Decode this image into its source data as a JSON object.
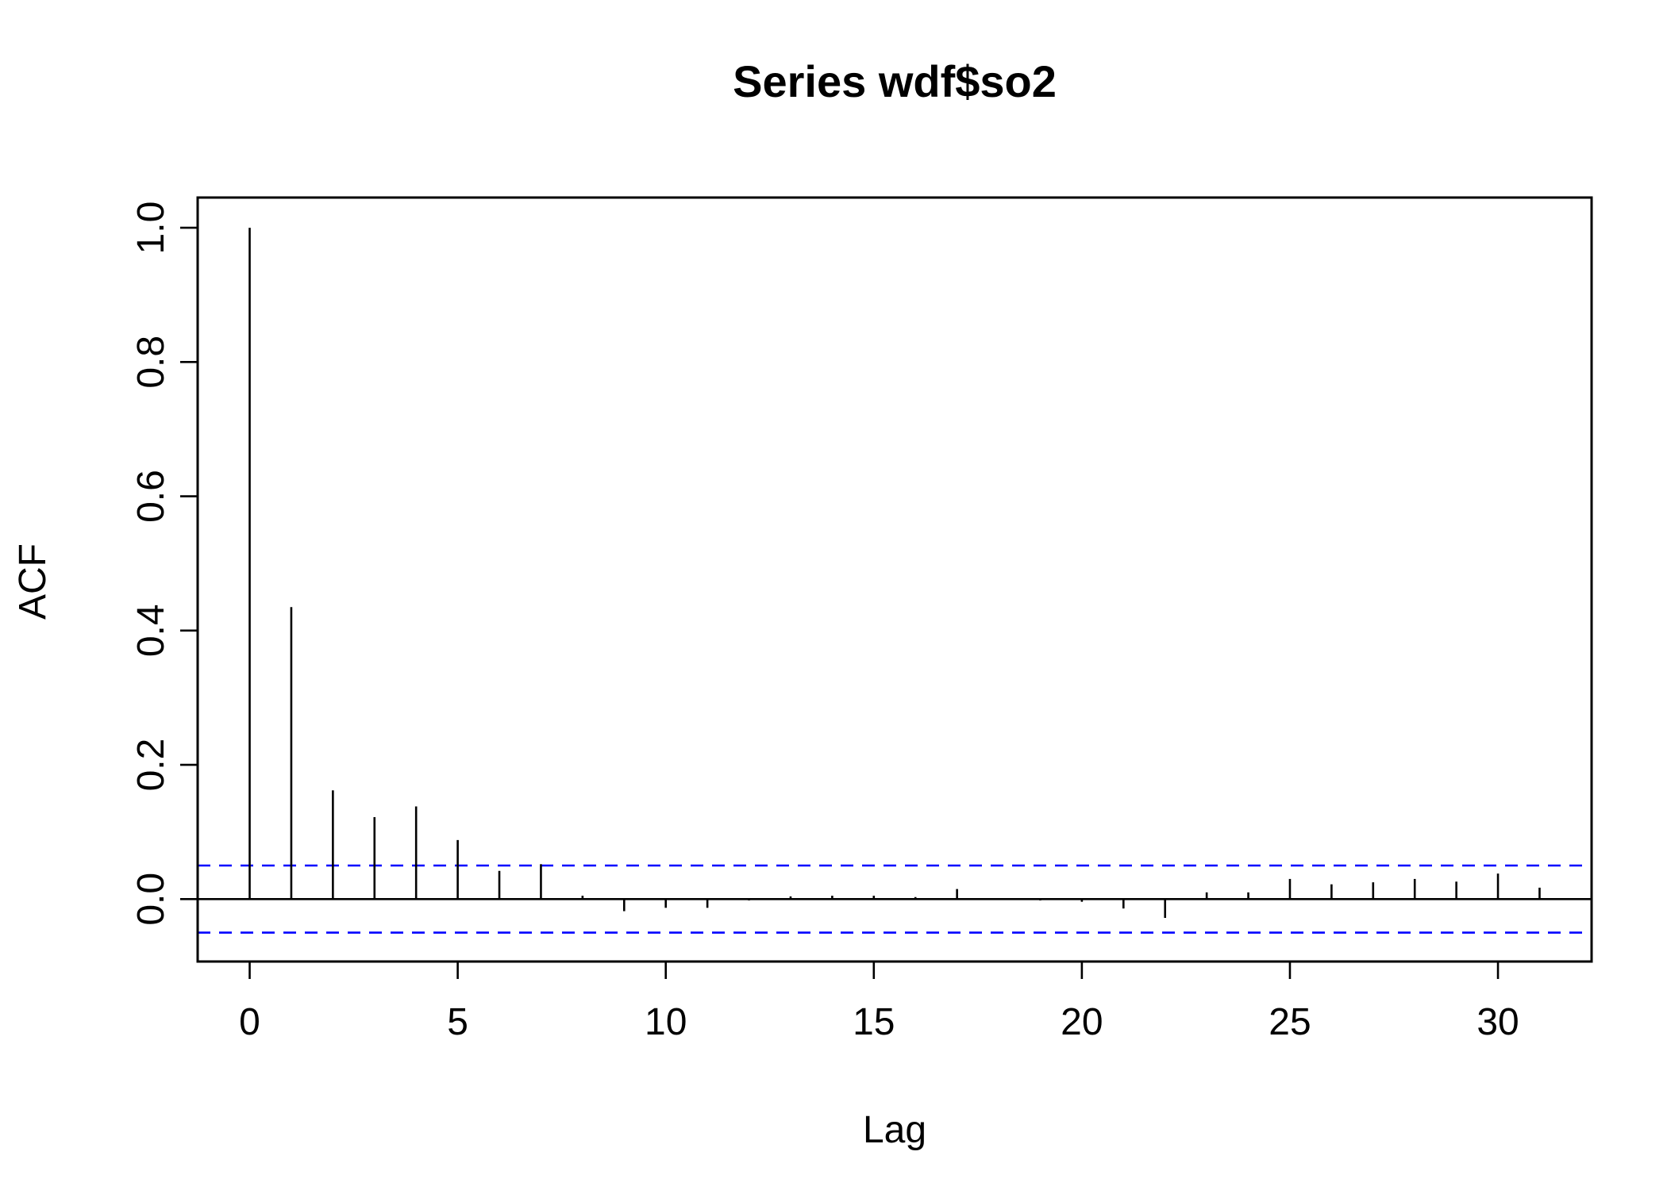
{
  "chart_data": {
    "type": "bar",
    "subtype": "acf-spikes",
    "title": "Series  wdf$so2",
    "xlabel": "Lag",
    "ylabel": "ACF",
    "x": [
      0,
      1,
      2,
      3,
      4,
      5,
      6,
      7,
      8,
      9,
      10,
      11,
      12,
      13,
      14,
      15,
      16,
      17,
      18,
      19,
      20,
      21,
      22,
      23,
      24,
      25,
      26,
      27,
      28,
      29,
      30,
      31
    ],
    "values": [
      1.0,
      0.435,
      0.162,
      0.122,
      0.138,
      0.088,
      0.042,
      0.052,
      0.005,
      -0.018,
      -0.013,
      -0.013,
      -0.002,
      0.004,
      0.005,
      0.005,
      0.003,
      0.015,
      -0.001,
      -0.002,
      -0.004,
      -0.014,
      -0.028,
      0.01,
      0.01,
      0.03,
      0.022,
      0.025,
      0.03,
      0.026,
      0.038,
      0.017
    ],
    "confidence_bounds": [
      0.05,
      -0.05
    ],
    "xlim": [
      -1.25,
      32.25
    ],
    "ylim": [
      -0.093,
      1.045
    ],
    "x_ticks": [
      0,
      5,
      10,
      15,
      20,
      25,
      30
    ],
    "x_tick_labels": [
      "0",
      "5",
      "10",
      "15",
      "20",
      "25",
      "30"
    ],
    "y_ticks": [
      0.0,
      0.2,
      0.4,
      0.6,
      0.8,
      1.0
    ],
    "y_tick_labels": [
      "0.0",
      "0.2",
      "0.4",
      "0.6",
      "0.8",
      "1.0"
    ],
    "grid": false,
    "colors": {
      "spikes": "#000000",
      "confidence": "#0000ff",
      "axes": "#000000"
    }
  }
}
